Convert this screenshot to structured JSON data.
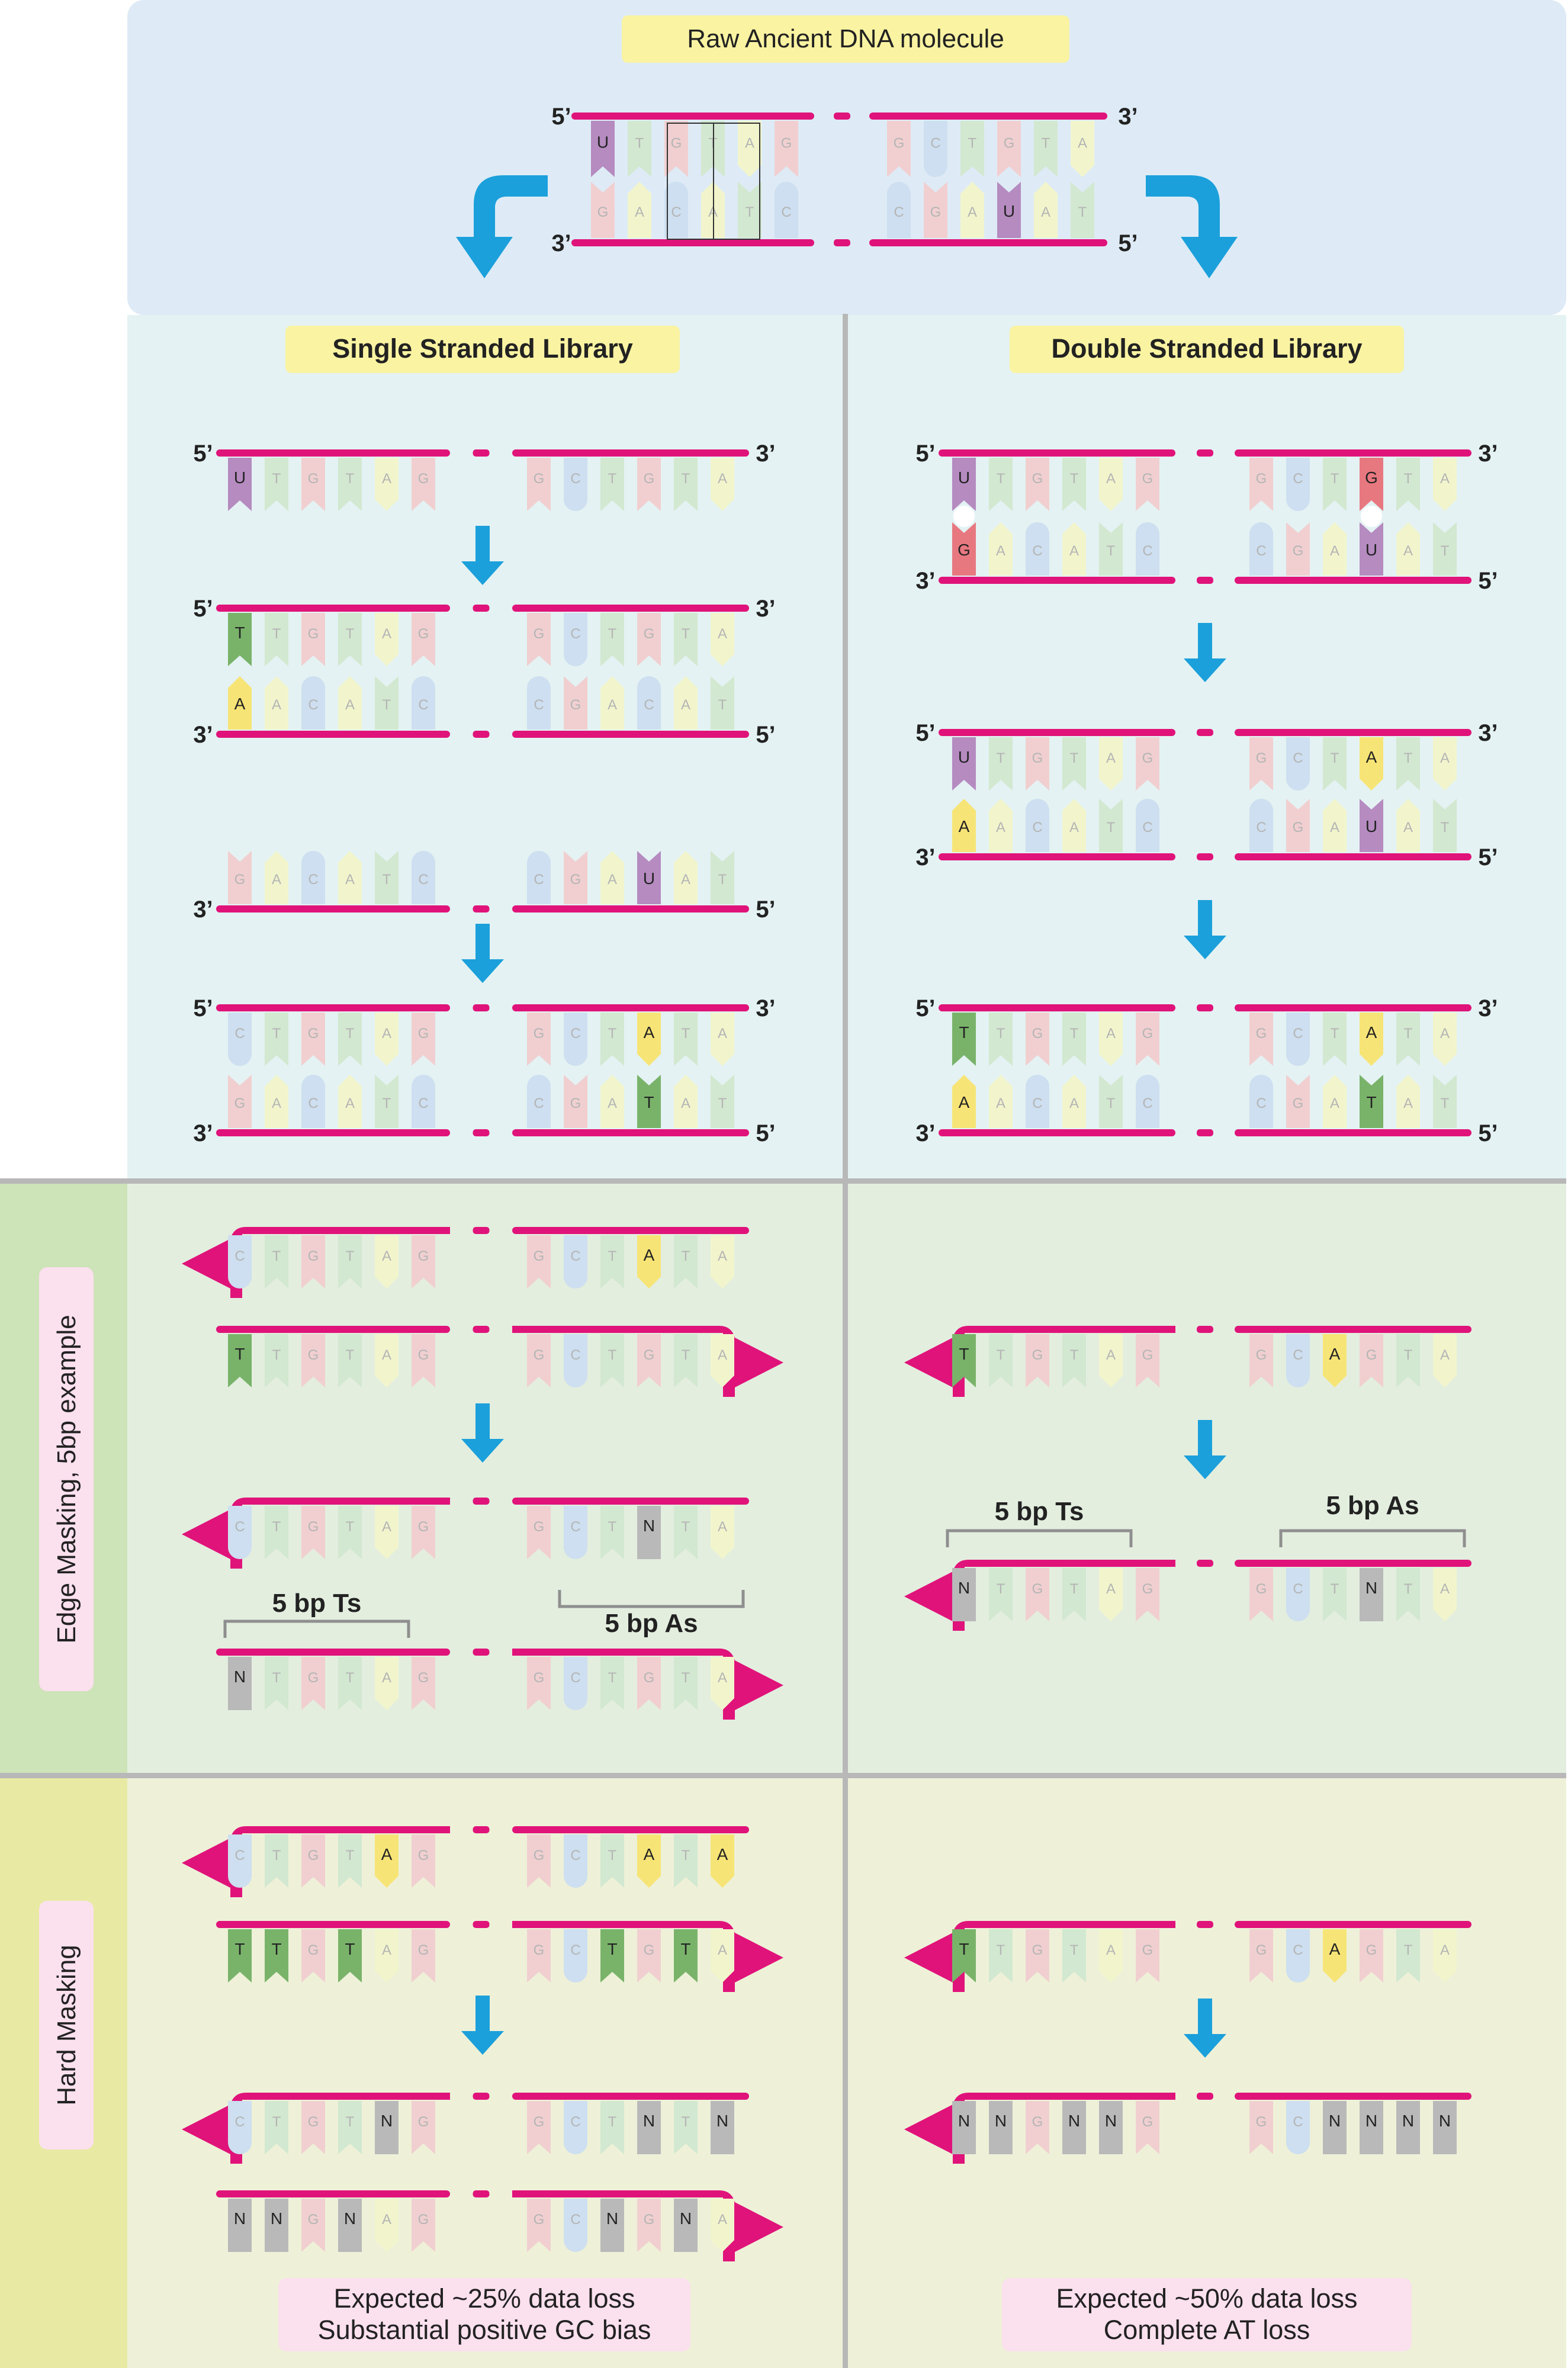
{
  "title": "Raw Ancient DNA molecule",
  "columns": {
    "left": "Single Stranded Library",
    "right": "Double Stranded Library"
  },
  "rows": {
    "edge": "Edge Masking, 5bp example",
    "hard": "Hard Masking"
  },
  "end_labels": {
    "five": "5’",
    "three": "3’"
  },
  "brackets": {
    "ts": "5 bp Ts",
    "as": "5 bp As"
  },
  "summaries": {
    "left": [
      "Expected ~25% data loss",
      "Substantial positive GC bias"
    ],
    "right": [
      "Expected ~50% data loss",
      "Complete AT loss"
    ]
  },
  "colors": {
    "header_bg": "#deebf6",
    "library_bg": "#e4f2f3",
    "edge_bg": "#e3eedf",
    "hard_bg": "#eef1d8",
    "edge_row_tab": "#cde3b8",
    "hard_row_tab": "#e8eaa3",
    "label_box": "#faf3a2",
    "pink_box": "#fbe0ee",
    "backbone": "#e0137a",
    "arrow": "#1ba0db",
    "divider": "#b8b8b8",
    "G": "#f1cfd0",
    "C": "#cddff0",
    "T": "#d2e8d0",
    "A": "#f2f5cc",
    "U": "#b58bc0",
    "T_hl": "#79b36a",
    "A_hl": "#f7e476",
    "G_hl": "#e87880",
    "N": "#b9b9b9"
  }
}
